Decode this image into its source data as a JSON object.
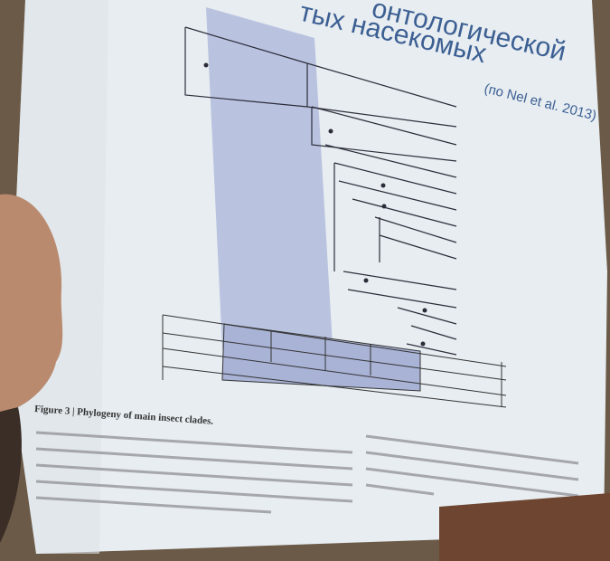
{
  "slide": {
    "title_line1": "онтологической",
    "title_line2": "тых насекомых",
    "citation": "(по Nel et al. 2013)",
    "figure_caption": "Figure 3 | Phylogeny of main insect clades."
  }
}
